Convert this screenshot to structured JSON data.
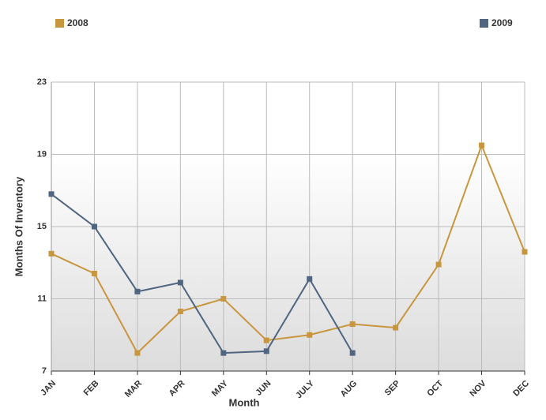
{
  "chart_data": {
    "type": "line",
    "x_label": "Month",
    "y_label": "Months Of Inventory",
    "categories": [
      "JAN",
      "FEB",
      "MAR",
      "APR",
      "MAY",
      "JUN",
      "JULY",
      "AUG",
      "SEP",
      "OCT",
      "NOV",
      "DEC"
    ],
    "series": [
      {
        "name": "2008",
        "color": "#c8963e",
        "values": [
          13.5,
          12.4,
          8.0,
          10.3,
          11.0,
          8.7,
          9.0,
          9.6,
          9.4,
          12.9,
          19.5,
          13.6
        ]
      },
      {
        "name": "2009",
        "color": "#4f6580",
        "values": [
          16.8,
          15.0,
          11.4,
          11.9,
          8.0,
          8.1,
          12.1,
          8.0,
          null,
          null,
          null,
          null
        ]
      }
    ],
    "ylim": [
      7,
      23
    ],
    "yticks": [
      7,
      11,
      15,
      19,
      23
    ],
    "grid": true,
    "legend_position": "top"
  }
}
